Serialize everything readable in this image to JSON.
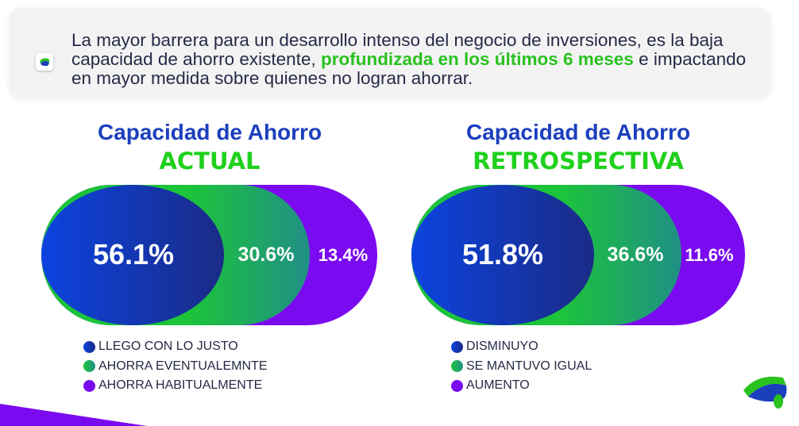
{
  "banner": {
    "text_before": "La mayor barrera para un desarrollo intenso del negocio de inversiones, es la baja capacidad de ahorro existente, ",
    "highlight": "profundizada en los últimos 6 meses",
    "text_after": " e impactando en mayor medida sobre quienes no logran ahorrar."
  },
  "colors": {
    "blue": "#0d43e0",
    "green": "#1cc43a",
    "purple": "#7a0af0",
    "title_blue": "#1c3fbd",
    "title_green": "#1fd11c"
  },
  "chart_data": [
    {
      "type": "bubble-overlap",
      "title": "Capacidad de Ahorro",
      "subtitle": "ACTUAL",
      "categories": [
        "LLEGO CON LO JUSTO",
        "AHORRA EVENTUALEMNTE",
        "AHORRA HABITUALMENTE"
      ],
      "values": [
        56.1,
        30.6,
        13.4
      ],
      "labels": [
        "56.1%",
        "30.6%",
        "13.4%"
      ],
      "legend_placement": "bottom"
    },
    {
      "type": "bubble-overlap",
      "title": "Capacidad de Ahorro",
      "subtitle": "RETROSPECTIVA",
      "categories": [
        "DISMINUYO",
        "SE MANTUVO IGUAL",
        "AUMENTO"
      ],
      "values": [
        51.8,
        36.6,
        11.6
      ],
      "labels": [
        "51.8%",
        "36.6%",
        "11.6%"
      ],
      "legend_placement": "bottom"
    }
  ]
}
